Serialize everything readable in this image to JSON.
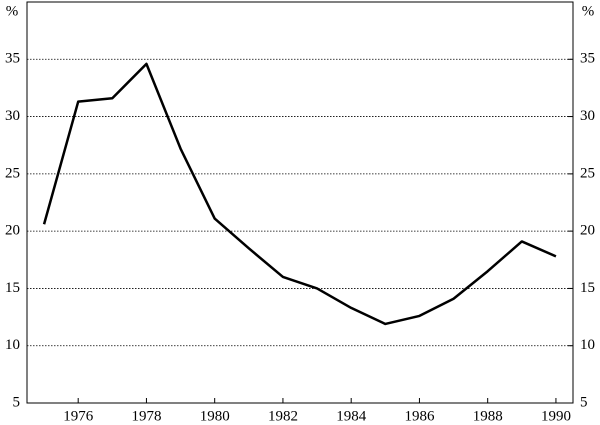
{
  "chart_data": {
    "type": "line",
    "ylabel": "%",
    "y2label": "%",
    "x": [
      1975,
      1976,
      1977,
      1978,
      1979,
      1980,
      1981,
      1982,
      1983,
      1984,
      1985,
      1986,
      1987,
      1988,
      1989,
      1990
    ],
    "series": [
      {
        "color": "#000000",
        "values": [
          20.6,
          31.3,
          31.6,
          34.6,
          27.2,
          21.1,
          18.5,
          16.0,
          15.0,
          13.3,
          11.9,
          12.6,
          14.1,
          16.5,
          19.1,
          17.8
        ]
      }
    ],
    "xlim": [
      1974.5,
      1990.5
    ],
    "xticks": [
      1976,
      1978,
      1980,
      1982,
      1984,
      1986,
      1988,
      1990
    ],
    "ylim": [
      5,
      40
    ],
    "yticks": [
      5,
      10,
      15,
      20,
      25,
      30,
      35
    ],
    "y2lim": [
      5,
      40
    ],
    "y2ticks": [
      5,
      10,
      15,
      20,
      25,
      30,
      35
    ],
    "grid": true
  }
}
